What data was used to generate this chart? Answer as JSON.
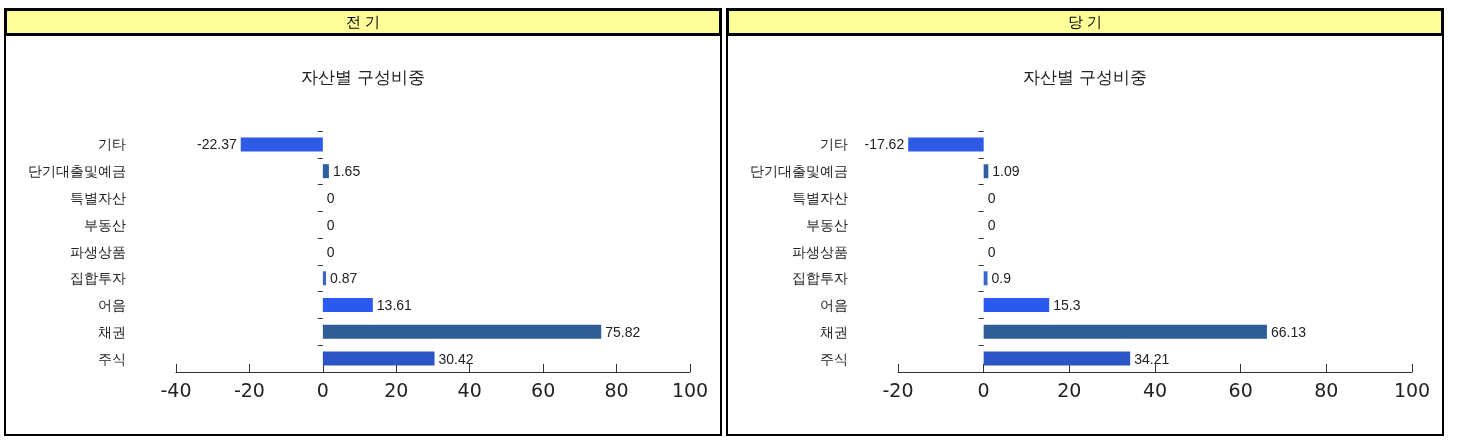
{
  "chart_data": [
    {
      "type": "bar",
      "orientation": "horizontal",
      "title": "전 기",
      "subtitle": "자산별 구성비중",
      "categories": [
        "기타",
        "단기대출및예금",
        "특별자산",
        "부동산",
        "파생상품",
        "집합투자",
        "어음",
        "채권",
        "주식"
      ],
      "values": [
        -22.37,
        1.65,
        0,
        0,
        0,
        0.87,
        13.61,
        75.82,
        30.42
      ],
      "colors": [
        "#2e5be6",
        "#2f5f9f",
        "#2f5f9f",
        "#2f5f9f",
        "#2f5f9f",
        "#3a66cc",
        "#2b59f0",
        "#2d5f96",
        "#2c55c8"
      ],
      "xlim": [
        -40,
        100
      ],
      "xticks": [
        -40,
        -20,
        0,
        20,
        40,
        60,
        80,
        100
      ],
      "data_labels": true,
      "grid": false
    },
    {
      "type": "bar",
      "orientation": "horizontal",
      "title": "당 기",
      "subtitle": "자산별 구성비중",
      "categories": [
        "기타",
        "단기대출및예금",
        "특별자산",
        "부동산",
        "파생상품",
        "집합투자",
        "어음",
        "채권",
        "주식"
      ],
      "values": [
        -17.62,
        1.09,
        0,
        0,
        0,
        0.9,
        15.3,
        66.13,
        34.21
      ],
      "colors": [
        "#2e5be6",
        "#2f5f9f",
        "#2f5f9f",
        "#2f5f9f",
        "#2f5f9f",
        "#3a66cc",
        "#2b59f0",
        "#2d5f96",
        "#2c55c8"
      ],
      "xlim": [
        -20,
        100
      ],
      "xticks": [
        -20,
        0,
        20,
        40,
        60,
        80,
        100
      ],
      "data_labels": true,
      "grid": false
    }
  ]
}
